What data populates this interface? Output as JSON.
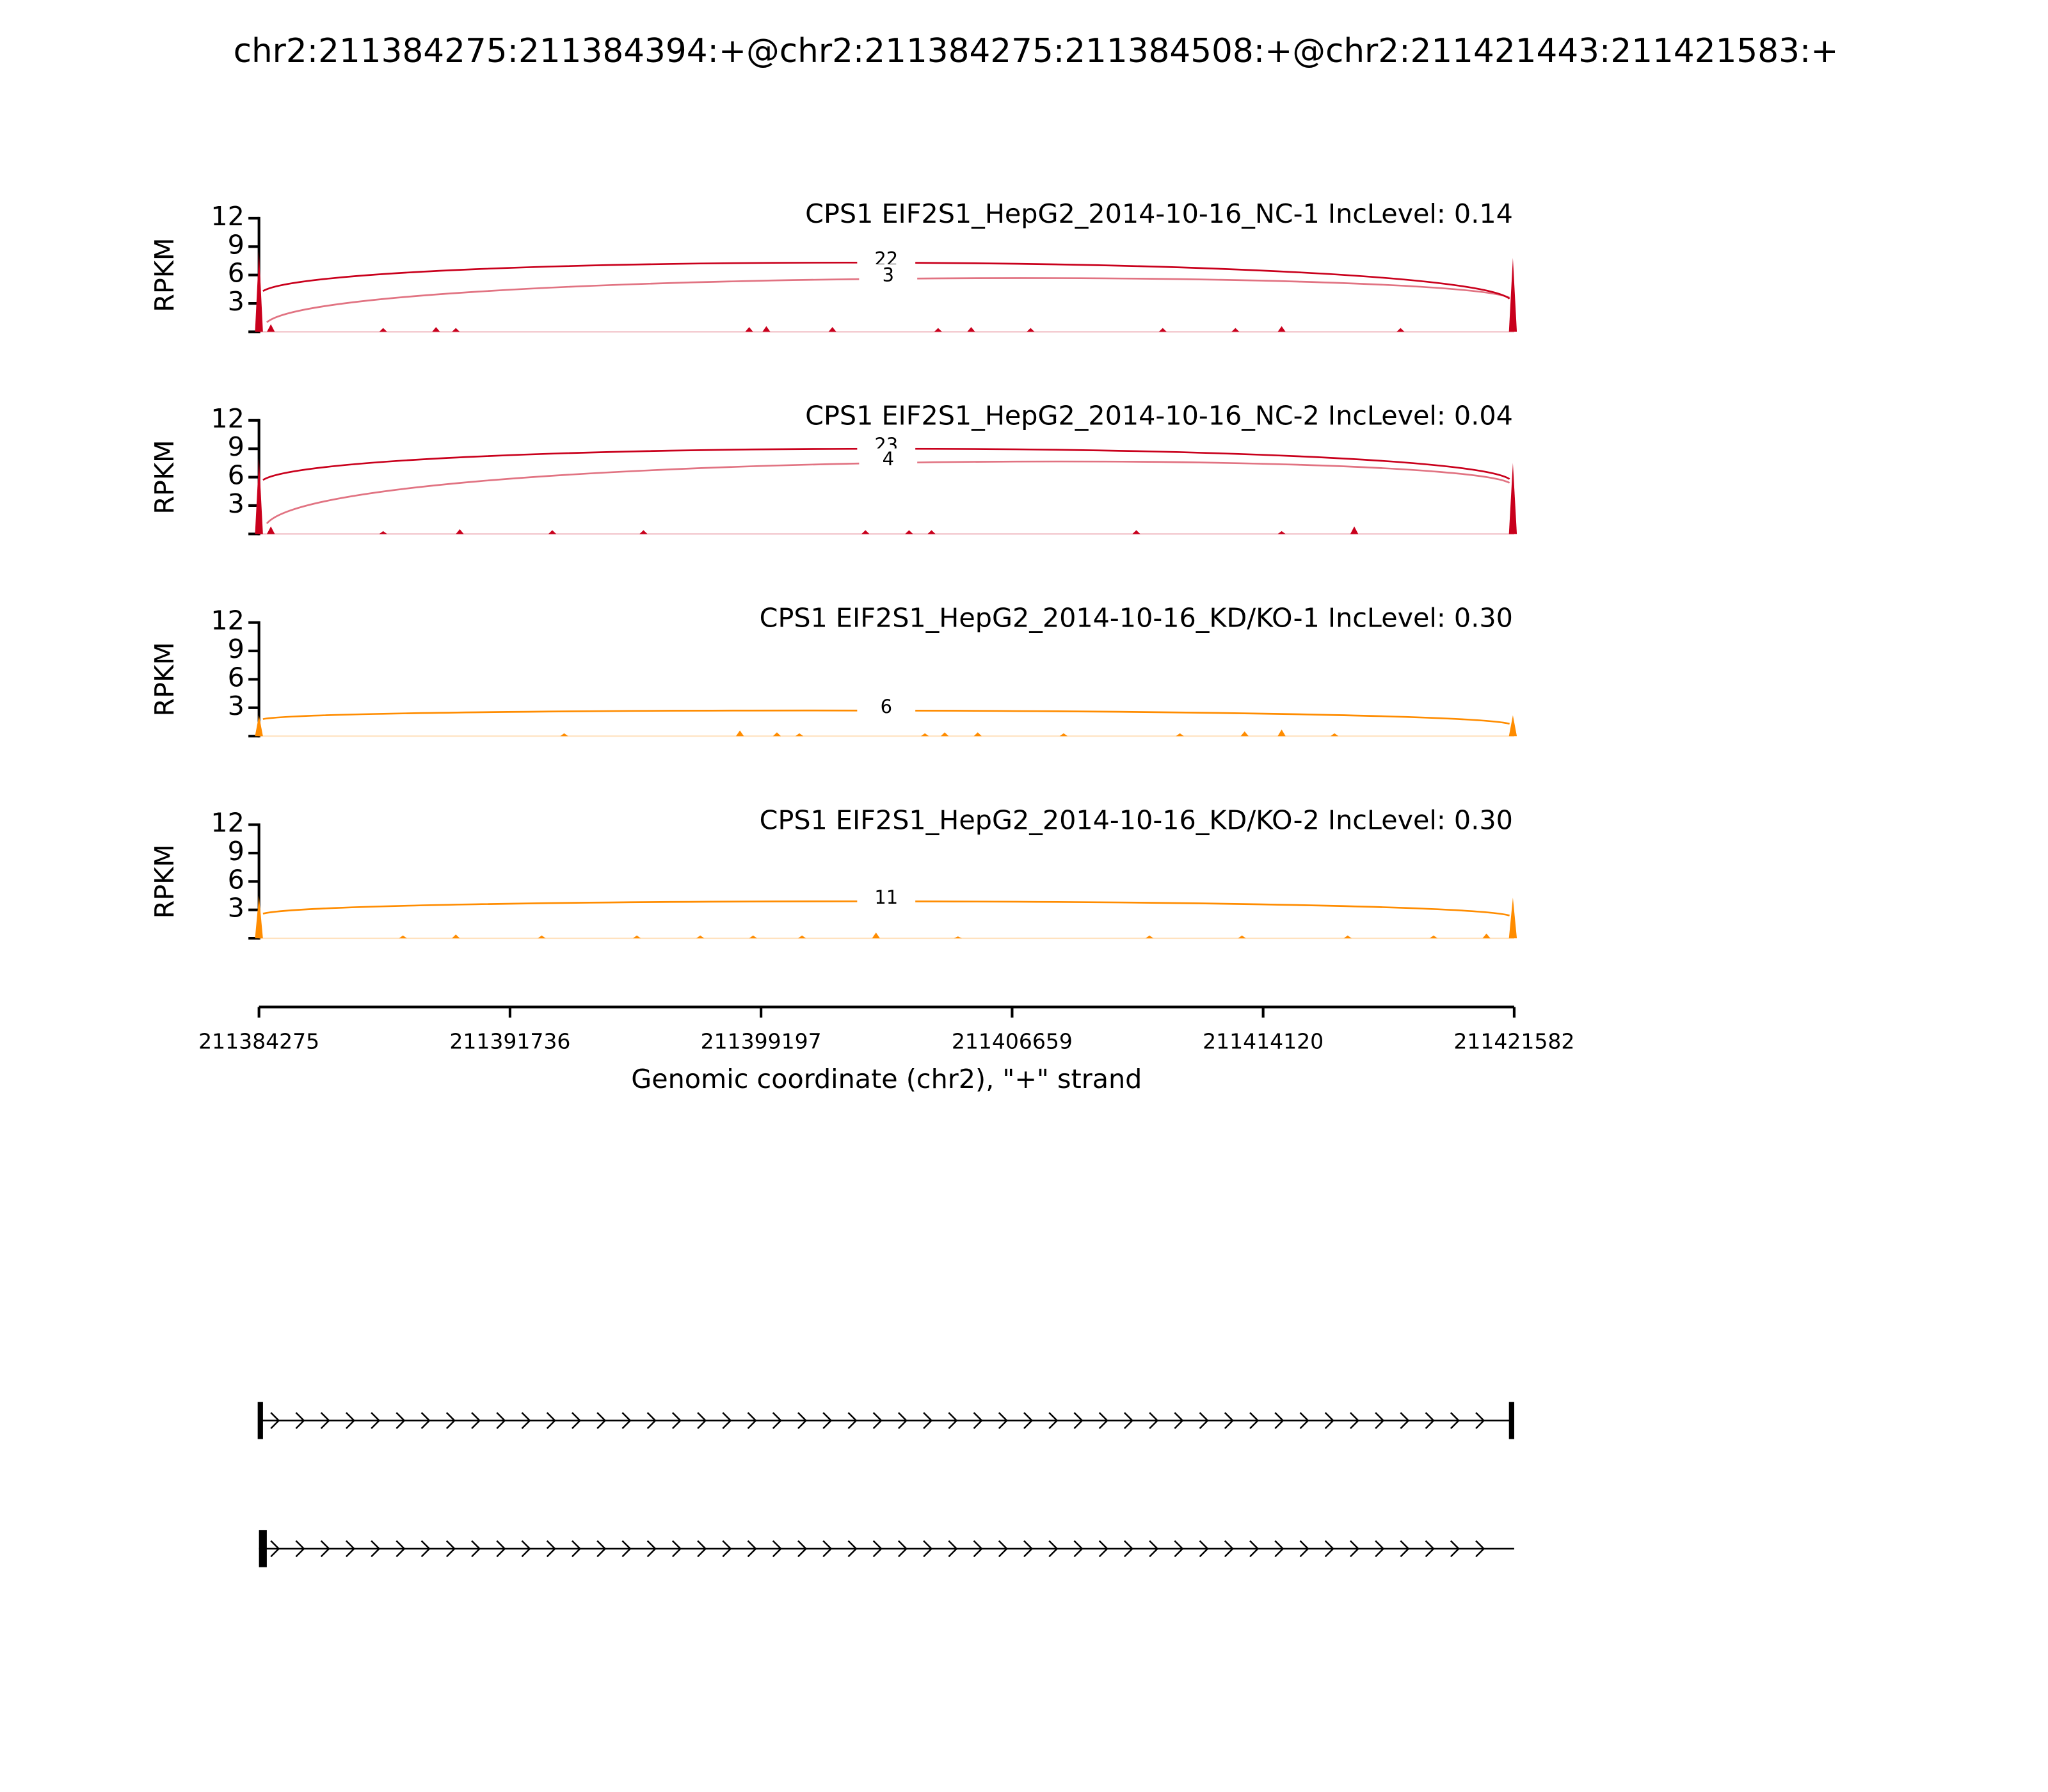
{
  "title": "chr2:211384275:211384394:+@chr2:211384275:211384508:+@chr2:211421443:211421583:+",
  "genome_axis": {
    "xlim": [
      211384275,
      211421582
    ],
    "xticks": [
      211384275,
      211391736,
      211399197,
      211406659,
      211414120,
      211421582
    ],
    "xlabel": "Genomic coordinate (chr2), \"+\" strand"
  },
  "chart_data": [
    {
      "type": "sashimi",
      "title": "CPS1 EIF2S1_HepG2_2014-10-16_NC-1 IncLevel: 0.14",
      "color": "#c9001c",
      "ylabel": "RPKM",
      "ylim": [
        0,
        12
      ],
      "yticks": [
        3,
        6,
        9,
        12
      ],
      "coverage_x": [
        211384275,
        211384628,
        211387966,
        211389537,
        211390126,
        211398844,
        211399355,
        211401318,
        211404460,
        211405442,
        211407209,
        211411136,
        211413296,
        211414670,
        211418204,
        211421543
      ],
      "coverage": [
        8.5,
        0.8,
        0.4,
        0.5,
        0.4,
        0.5,
        0.6,
        0.5,
        0.4,
        0.5,
        0.4,
        0.4,
        0.4,
        0.6,
        0.4,
        7.8
      ],
      "junctions": [
        {
          "start": 211384394,
          "end": 211421443,
          "count": 22
        },
        {
          "start": 211384508,
          "end": 211421443,
          "count": 3
        }
      ]
    },
    {
      "type": "sashimi",
      "title": "CPS1 EIF2S1_HepG2_2014-10-16_NC-2 IncLevel: 0.04",
      "color": "#c9001c",
      "ylabel": "RPKM",
      "ylim": [
        0,
        12
      ],
      "yticks": [
        3,
        6,
        9,
        12
      ],
      "coverage_x": [
        211384275,
        211384628,
        211387966,
        211390244,
        211392993,
        211395703,
        211402300,
        211403596,
        211404264,
        211410350,
        211414670,
        211416829,
        211421543
      ],
      "coverage": [
        8,
        0.8,
        0.3,
        0.5,
        0.4,
        0.4,
        0.4,
        0.4,
        0.4,
        0.4,
        0.3,
        0.8,
        7.5
      ],
      "junctions": [
        {
          "start": 211384394,
          "end": 211421443,
          "count": 23
        },
        {
          "start": 211384508,
          "end": 211421443,
          "count": 4
        }
      ]
    },
    {
      "type": "sashimi",
      "title": "CPS1 EIF2S1_HepG2_2014-10-16_KD/KO-1 IncLevel: 0.30",
      "color": "#ff8c00",
      "ylabel": "RPKM",
      "ylim": [
        0,
        12
      ],
      "yticks": [
        3,
        6,
        9,
        12
      ],
      "coverage_x": [
        211384275,
        211393346,
        211398569,
        211399669,
        211400336,
        211404067,
        211404656,
        211405638,
        211408190,
        211411646,
        211413570,
        211414670,
        211416240,
        211421543
      ],
      "coverage": [
        2.2,
        0.3,
        0.6,
        0.4,
        0.3,
        0.3,
        0.4,
        0.4,
        0.3,
        0.3,
        0.5,
        0.7,
        0.3,
        2.2
      ],
      "junctions": [
        {
          "start": 211384394,
          "end": 211421443,
          "count": 6
        }
      ]
    },
    {
      "type": "sashimi",
      "title": "CPS1 EIF2S1_HepG2_2014-10-16_KD/KO-2 IncLevel: 0.30",
      "color": "#ff8c00",
      "ylabel": "RPKM",
      "ylim": [
        0,
        12
      ],
      "yticks": [
        3,
        6,
        9,
        12
      ],
      "coverage_x": [
        211384275,
        211388555,
        211390126,
        211392679,
        211395506,
        211397391,
        211398962,
        211400415,
        211402614,
        211405049,
        211410742,
        211413491,
        211416633,
        211419186,
        211420757,
        211421543
      ],
      "coverage": [
        4.5,
        0.3,
        0.4,
        0.3,
        0.3,
        0.3,
        0.3,
        0.3,
        0.6,
        0.2,
        0.3,
        0.3,
        0.3,
        0.3,
        0.5,
        4.3
      ],
      "junctions": [
        {
          "start": 211384394,
          "end": 211421443,
          "count": 11
        }
      ]
    }
  ],
  "transcripts": [
    {
      "start": 211384275,
      "end": 211421583,
      "exons": [
        [
          211384275,
          211384394
        ],
        [
          211421443,
          211421583
        ]
      ]
    },
    {
      "start": 211384275,
      "end": 211421582,
      "exons": [
        [
          211384275,
          211384508
        ]
      ]
    }
  ]
}
